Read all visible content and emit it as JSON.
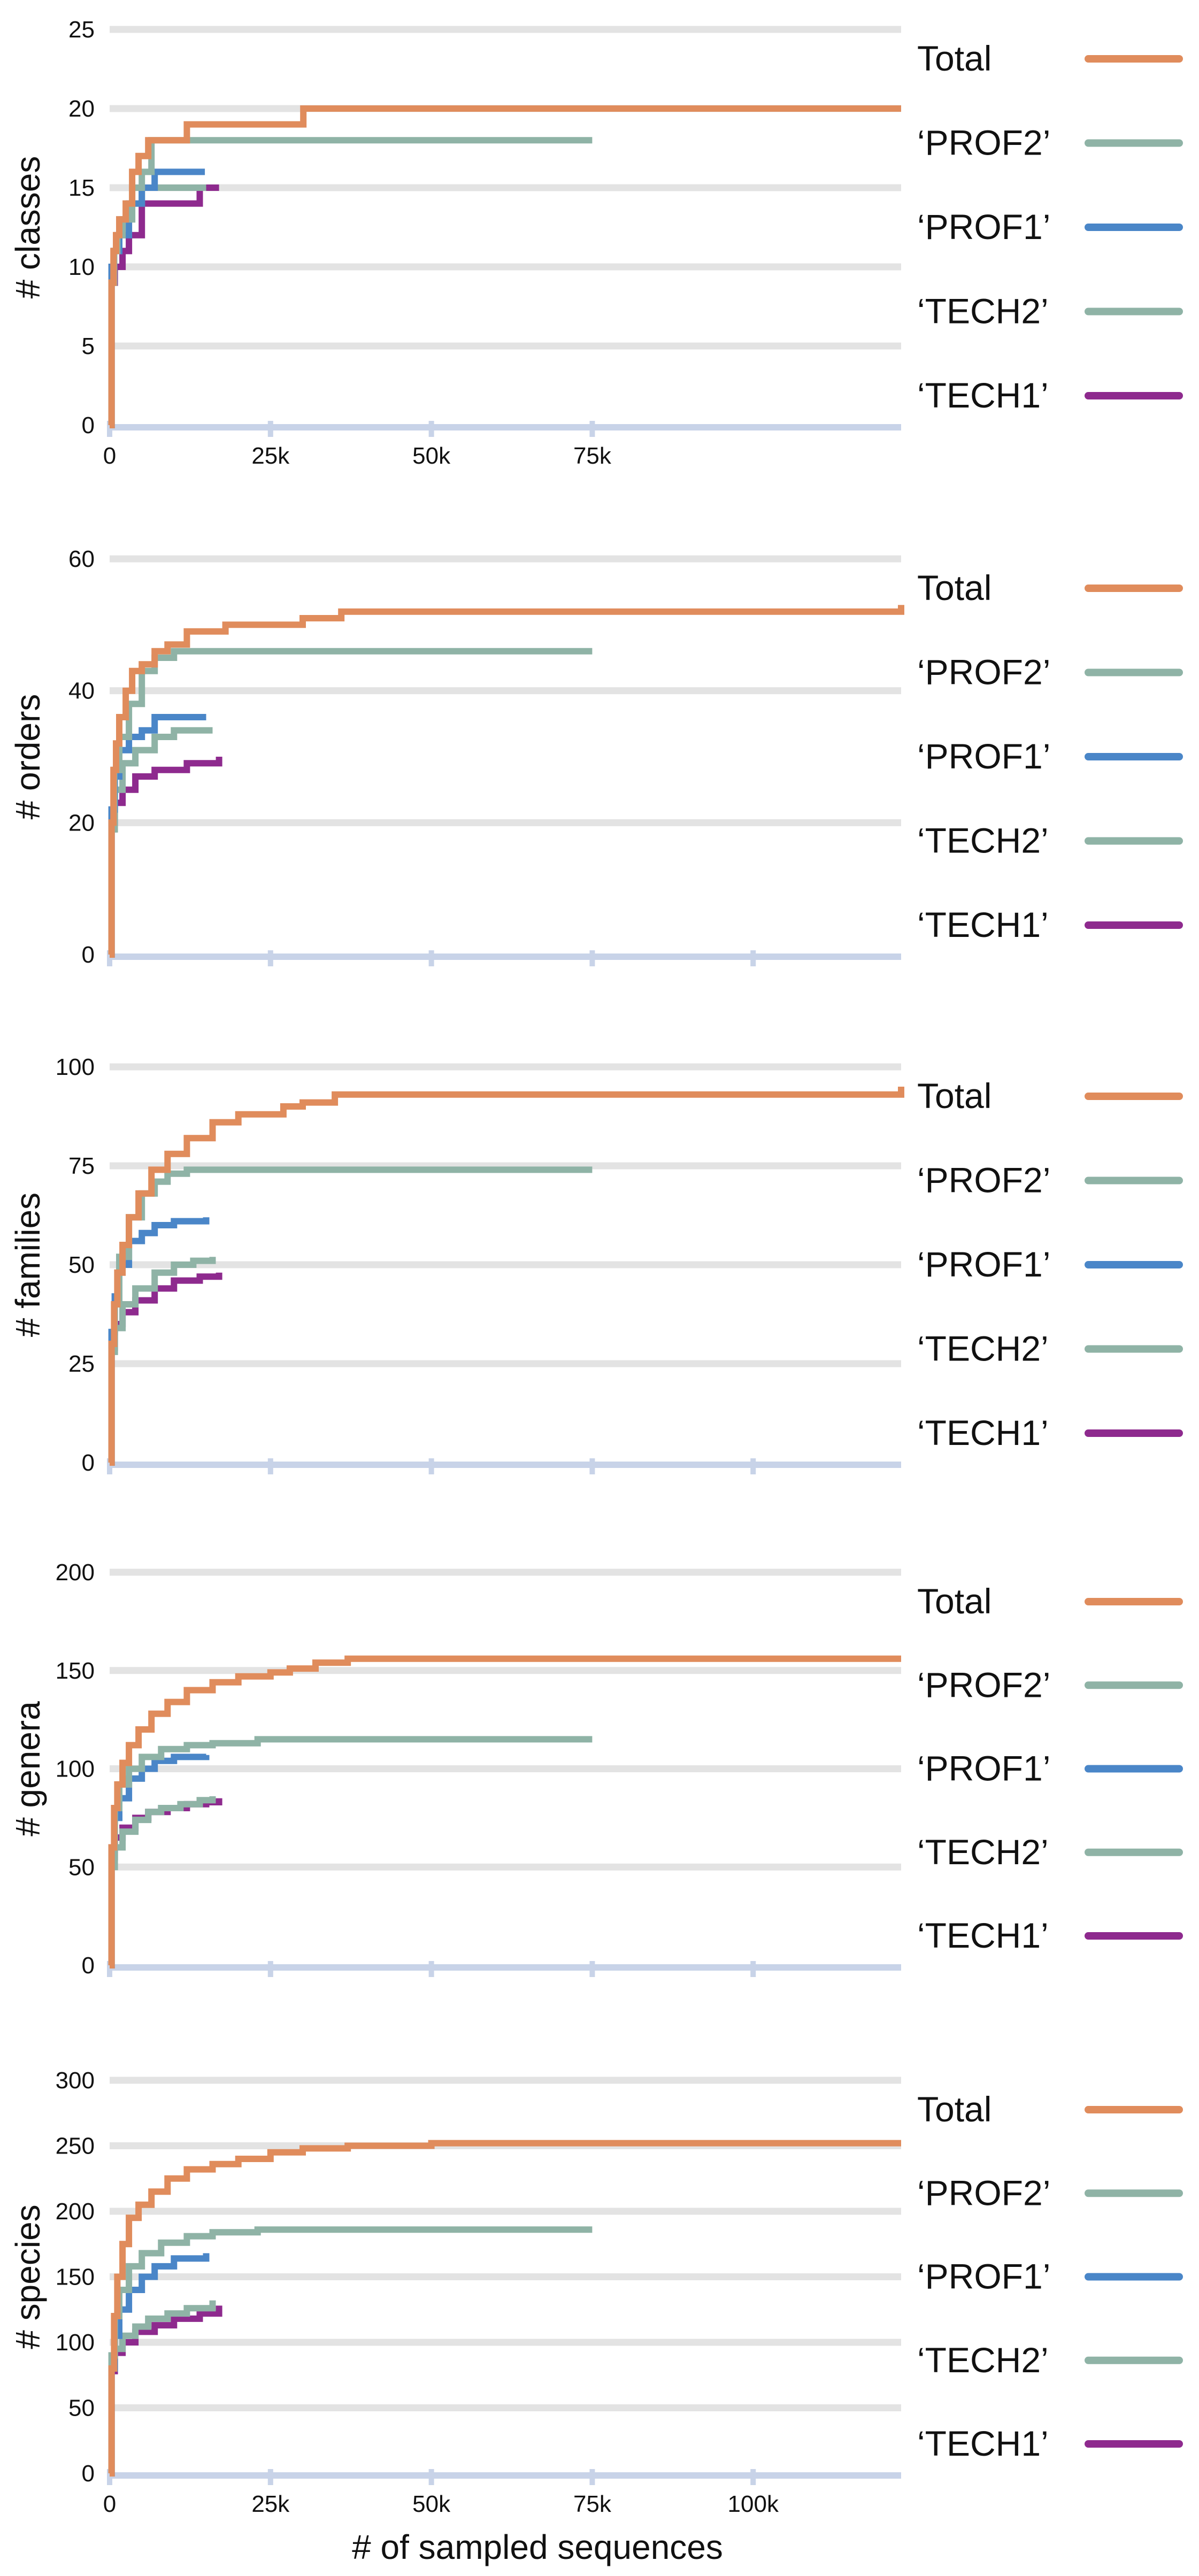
{
  "colors": {
    "total": "#E08C5C",
    "prof2": "#8FB3A6",
    "prof1": "#4A86C8",
    "tech2": "#8FB3A6",
    "tech1": "#8E2A8E",
    "grid": "#E3E3E3",
    "axis": "#C8D3E8"
  },
  "chart_data": [
    {
      "type": "line",
      "ylabel": "# classes",
      "ylim": [
        0,
        25
      ],
      "yticks": [
        0,
        5,
        10,
        15,
        20,
        25
      ],
      "xlim": [
        0,
        123000
      ],
      "xticks": [
        0,
        25000,
        50000,
        75000
      ],
      "xtick_labels": [
        "0",
        "25k",
        "50k",
        "75k"
      ],
      "xlabel": "",
      "legend_position": "right",
      "series": [
        {
          "name": "Total",
          "color_key": "total",
          "x": [
            0,
            300,
            600,
            1000,
            1500,
            2500,
            3500,
            4500,
            6000,
            10000,
            12000,
            20000,
            30000,
            30100,
            123000
          ],
          "y": [
            0,
            9,
            11,
            12,
            13,
            14,
            16,
            17,
            18,
            18,
            19,
            19,
            19,
            20,
            20
          ]
        },
        {
          "name": "‘PROF2’",
          "color_key": "prof2",
          "x": [
            0,
            300,
            700,
            1200,
            2000,
            3500,
            5000,
            6500,
            75000
          ],
          "y": [
            0,
            9,
            11,
            12,
            13,
            15,
            16,
            18,
            18
          ]
        },
        {
          "name": "‘PROF1’",
          "color_key": "prof1",
          "x": [
            0,
            300,
            700,
            1500,
            3000,
            5000,
            7000,
            14800
          ],
          "y": [
            0,
            10,
            11,
            12,
            14,
            15,
            16,
            16
          ]
        },
        {
          "name": "‘TECH2’",
          "color_key": "tech2",
          "x": [
            0,
            300,
            700,
            1500,
            3000,
            5000,
            8000,
            15000
          ],
          "y": [
            0,
            9,
            11,
            13,
            14,
            15,
            15,
            15
          ]
        },
        {
          "name": "‘TECH1’",
          "color_key": "tech1",
          "x": [
            0,
            300,
            800,
            2000,
            3000,
            5000,
            10000,
            14000,
            17000
          ],
          "y": [
            0,
            9,
            10,
            11,
            12,
            14,
            14,
            15,
            15
          ]
        }
      ]
    },
    {
      "type": "line",
      "ylabel": "# orders",
      "ylim": [
        0,
        60
      ],
      "yticks": [
        0,
        20,
        40,
        60
      ],
      "xlim": [
        0,
        123000
      ],
      "xticks": [
        0,
        25000,
        50000,
        75000,
        100000
      ],
      "xtick_labels": [
        "",
        "",
        "",
        "",
        ""
      ],
      "xlabel": "",
      "legend_position": "right",
      "series": [
        {
          "name": "Total",
          "color_key": "total",
          "x": [
            0,
            300,
            600,
            1000,
            1500,
            2500,
            3500,
            5000,
            7000,
            9000,
            12000,
            18000,
            22000,
            30000,
            36000,
            123000
          ],
          "y": [
            0,
            20,
            28,
            32,
            36,
            40,
            43,
            44,
            46,
            47,
            49,
            50,
            50,
            51,
            52,
            53
          ]
        },
        {
          "name": "‘PROF2’",
          "color_key": "prof2",
          "x": [
            0,
            300,
            700,
            1500,
            3000,
            5000,
            7000,
            10000,
            75000
          ],
          "y": [
            0,
            19,
            28,
            33,
            38,
            43,
            45,
            46,
            46
          ]
        },
        {
          "name": "‘PROF1’",
          "color_key": "prof1",
          "x": [
            0,
            300,
            800,
            1500,
            3000,
            5000,
            7000,
            15000
          ],
          "y": [
            0,
            22,
            27,
            31,
            33,
            34,
            36,
            36
          ]
        },
        {
          "name": "‘TECH2’",
          "color_key": "tech2",
          "x": [
            0,
            300,
            800,
            2000,
            4000,
            7000,
            10000,
            16000
          ],
          "y": [
            0,
            19,
            25,
            29,
            31,
            33,
            34,
            34
          ]
        },
        {
          "name": "‘TECH1’",
          "color_key": "tech1",
          "x": [
            0,
            300,
            800,
            2000,
            4000,
            7000,
            12000,
            17000
          ],
          "y": [
            0,
            20,
            23,
            25,
            27,
            28,
            29,
            30
          ]
        }
      ]
    },
    {
      "type": "line",
      "ylabel": "# families",
      "ylim": [
        0,
        100
      ],
      "yticks": [
        0,
        25,
        50,
        75,
        100
      ],
      "xlim": [
        0,
        123000
      ],
      "xticks": [
        0,
        25000,
        50000,
        75000,
        100000
      ],
      "xtick_labels": [
        "",
        "",
        "",
        "",
        ""
      ],
      "xlabel": "",
      "legend_position": "right",
      "series": [
        {
          "name": "Total",
          "color_key": "total",
          "x": [
            0,
            300,
            700,
            1200,
            2000,
            3000,
            4500,
            6500,
            9000,
            12000,
            16000,
            20000,
            27000,
            30000,
            35000,
            123000
          ],
          "y": [
            0,
            30,
            40,
            48,
            55,
            62,
            68,
            74,
            78,
            82,
            86,
            88,
            90,
            91,
            93,
            95
          ]
        },
        {
          "name": "‘PROF2’",
          "color_key": "prof2",
          "x": [
            0,
            300,
            800,
            1500,
            3000,
            5000,
            7000,
            9000,
            12000,
            75000
          ],
          "y": [
            0,
            28,
            40,
            52,
            62,
            68,
            71,
            73,
            74,
            74
          ]
        },
        {
          "name": "‘PROF1’",
          "color_key": "prof1",
          "x": [
            0,
            300,
            800,
            1500,
            3000,
            5000,
            7000,
            10000,
            15000
          ],
          "y": [
            0,
            33,
            42,
            50,
            56,
            58,
            60,
            61,
            62
          ]
        },
        {
          "name": "‘TECH2’",
          "color_key": "tech2",
          "x": [
            0,
            300,
            800,
            2000,
            4000,
            7000,
            10000,
            13000,
            16000
          ],
          "y": [
            0,
            28,
            34,
            40,
            44,
            48,
            50,
            51,
            52
          ]
        },
        {
          "name": "‘TECH1’",
          "color_key": "tech1",
          "x": [
            0,
            300,
            800,
            2000,
            4000,
            7000,
            10000,
            14000,
            17000
          ],
          "y": [
            0,
            29,
            35,
            38,
            41,
            44,
            46,
            47,
            48
          ]
        }
      ]
    },
    {
      "type": "line",
      "ylabel": "# genera",
      "ylim": [
        0,
        200
      ],
      "yticks": [
        0,
        50,
        100,
        150,
        200
      ],
      "xlim": [
        0,
        123000
      ],
      "xticks": [
        0,
        25000,
        50000,
        75000,
        100000
      ],
      "xtick_labels": [
        "",
        "",
        "",
        "",
        ""
      ],
      "xlabel": "",
      "legend_position": "right",
      "series": [
        {
          "name": "Total",
          "color_key": "total",
          "x": [
            0,
            300,
            700,
            1200,
            2000,
            3000,
            4500,
            6500,
            9000,
            12000,
            16000,
            20000,
            25000,
            28000,
            32000,
            37000,
            123000
          ],
          "y": [
            0,
            60,
            80,
            92,
            103,
            112,
            120,
            128,
            134,
            140,
            144,
            147,
            149,
            151,
            154,
            156,
            156
          ]
        },
        {
          "name": "‘PROF2’",
          "color_key": "prof2",
          "x": [
            0,
            300,
            800,
            1500,
            3000,
            5000,
            8000,
            12000,
            16000,
            23000,
            75000
          ],
          "y": [
            0,
            60,
            80,
            92,
            100,
            106,
            110,
            112,
            113,
            115,
            115
          ]
        },
        {
          "name": "‘PROF1’",
          "color_key": "prof1",
          "x": [
            0,
            300,
            800,
            1500,
            3000,
            5000,
            7000,
            10000,
            15000
          ],
          "y": [
            0,
            60,
            75,
            85,
            95,
            100,
            104,
            106,
            107
          ]
        },
        {
          "name": "‘TECH2’",
          "color_key": "tech2",
          "x": [
            0,
            300,
            800,
            2000,
            4000,
            6000,
            8000,
            11000,
            14000,
            16000
          ],
          "y": [
            0,
            50,
            60,
            68,
            74,
            78,
            80,
            82,
            84,
            86
          ]
        },
        {
          "name": "‘TECH1’",
          "color_key": "tech1",
          "x": [
            0,
            300,
            800,
            2000,
            4000,
            6000,
            9000,
            12000,
            15000,
            17000
          ],
          "y": [
            0,
            55,
            65,
            70,
            75,
            78,
            80,
            82,
            83,
            85
          ]
        }
      ]
    },
    {
      "type": "line",
      "ylabel": "# species",
      "ylim": [
        0,
        300
      ],
      "yticks": [
        0,
        50,
        100,
        150,
        200,
        250,
        300
      ],
      "xlim": [
        0,
        123000
      ],
      "xticks": [
        0,
        25000,
        50000,
        75000,
        100000
      ],
      "xtick_labels": [
        "0",
        "25k",
        "50k",
        "75k",
        "100k"
      ],
      "xlabel": "# of sampled sequences",
      "legend_position": "right",
      "series": [
        {
          "name": "Total",
          "color_key": "total",
          "x": [
            0,
            300,
            700,
            1200,
            2000,
            3000,
            4500,
            6500,
            9000,
            12000,
            16000,
            20000,
            25000,
            30000,
            37000,
            50000,
            123000
          ],
          "y": [
            0,
            80,
            120,
            150,
            175,
            195,
            205,
            215,
            225,
            232,
            236,
            240,
            245,
            248,
            250,
            252,
            252
          ]
        },
        {
          "name": "‘PROF2’",
          "color_key": "prof2",
          "x": [
            0,
            300,
            800,
            1500,
            3000,
            5000,
            8000,
            12000,
            16000,
            23000,
            75000
          ],
          "y": [
            0,
            90,
            120,
            140,
            158,
            168,
            176,
            181,
            184,
            186,
            186
          ]
        },
        {
          "name": "‘PROF1’",
          "color_key": "prof1",
          "x": [
            0,
            300,
            800,
            1500,
            3000,
            5000,
            7000,
            10000,
            15000
          ],
          "y": [
            0,
            80,
            105,
            125,
            140,
            150,
            158,
            164,
            168
          ]
        },
        {
          "name": "‘TECH2’",
          "color_key": "tech2",
          "x": [
            0,
            300,
            800,
            2000,
            4000,
            6000,
            9000,
            12000,
            16000
          ],
          "y": [
            0,
            80,
            95,
            105,
            112,
            118,
            122,
            126,
            132
          ]
        },
        {
          "name": "‘TECH1’",
          "color_key": "tech1",
          "x": [
            0,
            300,
            800,
            2000,
            4000,
            7000,
            10000,
            14000,
            17000
          ],
          "y": [
            0,
            78,
            92,
            100,
            108,
            113,
            118,
            122,
            128
          ]
        }
      ]
    }
  ]
}
